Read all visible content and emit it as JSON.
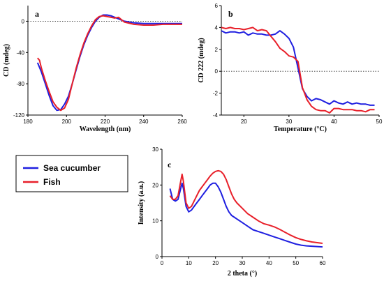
{
  "colors": {
    "sea_cucumber": "#1f1fe0",
    "fish": "#e8202a"
  },
  "legend": {
    "entries": [
      {
        "label": "Sea cucumber",
        "color": "#1f1fe0"
      },
      {
        "label": "Fish",
        "color": "#e8202a"
      }
    ]
  },
  "chart_data": [
    {
      "panel": "a",
      "type": "line",
      "xlabel": "Wavelength (nm)",
      "ylabel": "CD (mdeg)",
      "xlim": [
        180,
        260
      ],
      "ylim": [
        -120,
        20
      ],
      "xticks": [
        180,
        200,
        220,
        240,
        260
      ],
      "yticks": [
        -120,
        -80,
        -40,
        0
      ],
      "reference_line": 0,
      "series": [
        {
          "name": "Sea cucumber",
          "color": "#1f1fe0",
          "x": [
            185,
            187,
            189,
            191,
            193,
            195,
            197,
            199,
            201,
            203,
            205,
            207,
            209,
            211,
            213,
            215,
            217,
            219,
            221,
            223,
            225,
            227,
            230,
            235,
            240,
            245,
            250,
            255,
            260
          ],
          "y": [
            -53,
            -65,
            -80,
            -95,
            -108,
            -114,
            -113,
            -106,
            -96,
            -80,
            -62,
            -45,
            -30,
            -18,
            -8,
            0,
            5,
            8,
            8,
            7,
            5,
            3,
            0,
            -2,
            -3,
            -3,
            -3,
            -3,
            -3
          ]
        },
        {
          "name": "Fish",
          "color": "#e8202a",
          "x": [
            185,
            186,
            187,
            189,
            191,
            193,
            195,
            197,
            199,
            201,
            203,
            205,
            207,
            209,
            211,
            213,
            215,
            217,
            219,
            221,
            223,
            225,
            227,
            230,
            235,
            240,
            245,
            250,
            255,
            260
          ],
          "y": [
            -47,
            -50,
            -60,
            -76,
            -90,
            -103,
            -110,
            -114,
            -111,
            -100,
            -80,
            -60,
            -43,
            -28,
            -16,
            -6,
            2,
            6,
            7,
            6,
            5,
            4,
            5,
            -1,
            -4,
            -5,
            -5,
            -4,
            -4,
            -4
          ]
        }
      ]
    },
    {
      "panel": "b",
      "type": "line",
      "xlabel": "Temperature (°C)",
      "ylabel": "CD 222 (mdeg)",
      "xlim": [
        15,
        50
      ],
      "ylim": [
        -4,
        6
      ],
      "xticks": [
        20,
        30,
        40,
        50
      ],
      "yticks": [
        -4,
        -2,
        0,
        2,
        4,
        6
      ],
      "reference_line": 0,
      "series": [
        {
          "name": "Sea cucumber",
          "color": "#1f1fe0",
          "x": [
            15,
            16,
            17,
            18,
            19,
            20,
            21,
            22,
            23,
            24,
            25,
            26,
            27,
            28,
            29,
            30,
            31,
            32,
            33,
            34,
            35,
            36,
            37,
            38,
            39,
            40,
            41,
            42,
            43,
            44,
            45,
            46,
            47,
            48,
            49
          ],
          "y": [
            3.7,
            3.5,
            3.6,
            3.6,
            3.5,
            3.6,
            3.3,
            3.5,
            3.4,
            3.4,
            3.3,
            3.3,
            3.4,
            3.7,
            3.4,
            3.0,
            2.2,
            0.3,
            -1.6,
            -2.3,
            -2.7,
            -2.5,
            -2.6,
            -2.8,
            -3.0,
            -2.7,
            -2.9,
            -3.0,
            -2.8,
            -3.0,
            -2.9,
            -3.0,
            -3.0,
            -3.1,
            -3.1
          ]
        },
        {
          "name": "Fish",
          "color": "#e8202a",
          "x": [
            15,
            16,
            17,
            18,
            19,
            20,
            21,
            22,
            23,
            24,
            25,
            26,
            27,
            28,
            29,
            30,
            31,
            32,
            33,
            34,
            35,
            36,
            37,
            38,
            39,
            40,
            41,
            42,
            43,
            44,
            45,
            46,
            47,
            48,
            49
          ],
          "y": [
            4.0,
            3.9,
            4.0,
            3.9,
            3.9,
            3.8,
            3.9,
            4.0,
            3.7,
            3.8,
            3.7,
            3.2,
            2.7,
            2.1,
            1.8,
            1.4,
            1.3,
            0.9,
            -1.5,
            -2.6,
            -3.2,
            -3.5,
            -3.6,
            -3.6,
            -3.8,
            -3.4,
            -3.4,
            -3.5,
            -3.5,
            -3.5,
            -3.6,
            -3.6,
            -3.7,
            -3.5,
            -3.5
          ]
        }
      ]
    },
    {
      "panel": "c",
      "type": "line",
      "xlabel": "2 theta (°)",
      "ylabel": "Intensity (a.u.)",
      "xlim": [
        0,
        60
      ],
      "ylim": [
        0,
        30
      ],
      "xticks": [
        0,
        10,
        20,
        30,
        40,
        50,
        60
      ],
      "yticks": [
        0,
        10,
        20,
        30
      ],
      "series": [
        {
          "name": "Sea cucumber",
          "color": "#1f1fe0",
          "x": [
            3,
            4,
            5,
            6,
            7,
            7.5,
            8,
            9,
            10,
            11,
            12,
            13,
            14,
            15,
            16,
            17,
            18,
            19,
            20,
            21,
            22,
            23,
            24,
            25,
            26,
            27,
            28,
            30,
            32,
            34,
            36,
            38,
            40,
            42,
            44,
            46,
            48,
            50,
            52,
            54,
            56,
            58,
            60
          ],
          "y": [
            19,
            16,
            15.5,
            16,
            19,
            20.5,
            19,
            14,
            12.5,
            13,
            14,
            15,
            16,
            17,
            18,
            19,
            20,
            20.5,
            20.5,
            19.5,
            18,
            16,
            14,
            12.5,
            11.5,
            11,
            10.5,
            9.5,
            8.5,
            7.5,
            7,
            6.5,
            6,
            5.5,
            5,
            4.5,
            4,
            3.5,
            3.2,
            3,
            2.9,
            2.8,
            2.7
          ]
        },
        {
          "name": "Fish",
          "color": "#e8202a",
          "x": [
            3,
            4,
            5,
            6,
            7,
            7.5,
            8,
            9,
            10,
            11,
            12,
            13,
            14,
            15,
            16,
            17,
            18,
            19,
            20,
            21,
            22,
            23,
            24,
            25,
            26,
            27,
            28,
            30,
            32,
            34,
            36,
            38,
            40,
            42,
            44,
            46,
            48,
            50,
            52,
            54,
            56,
            58,
            60
          ],
          "y": [
            17,
            16,
            16,
            17,
            21,
            23,
            21,
            15,
            13.5,
            14,
            15.5,
            17,
            18.5,
            19.5,
            20.5,
            21.5,
            22.5,
            23.3,
            23.8,
            24,
            23.8,
            23,
            21.5,
            19.5,
            17.5,
            16,
            15,
            13.5,
            12,
            11,
            10,
            9.2,
            8.8,
            8.3,
            7.6,
            6.8,
            6,
            5.3,
            4.8,
            4.4,
            4.1,
            3.9,
            3.7
          ]
        }
      ]
    }
  ]
}
